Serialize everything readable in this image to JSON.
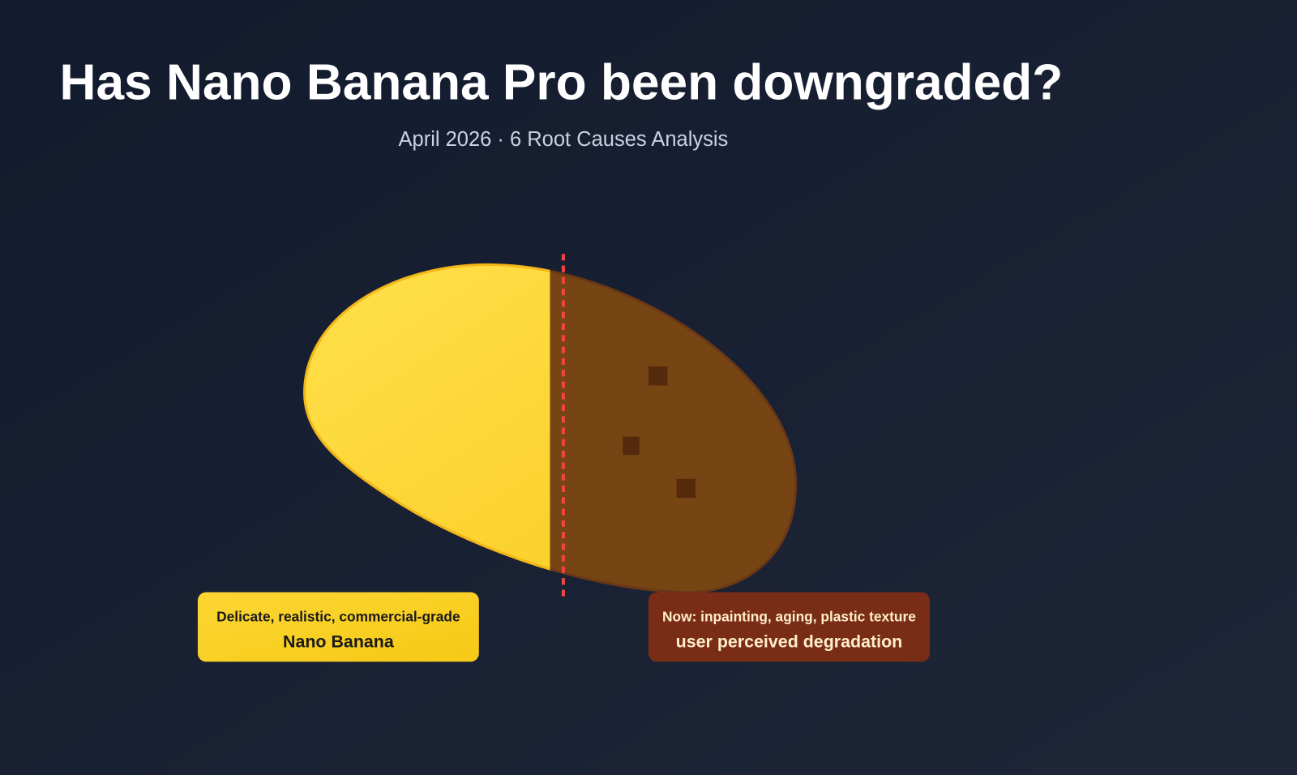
{
  "title": "Has Nano Banana Pro been downgraded?",
  "subtitle": "April 2026 · 6 Root Causes Analysis",
  "labels": {
    "before": {
      "caption": "Delicate, realistic, commercial-grade",
      "name": "Nano Banana"
    },
    "after": {
      "caption": "Now: inpainting, aging, plastic texture",
      "name": "user perceived degradation"
    }
  }
}
